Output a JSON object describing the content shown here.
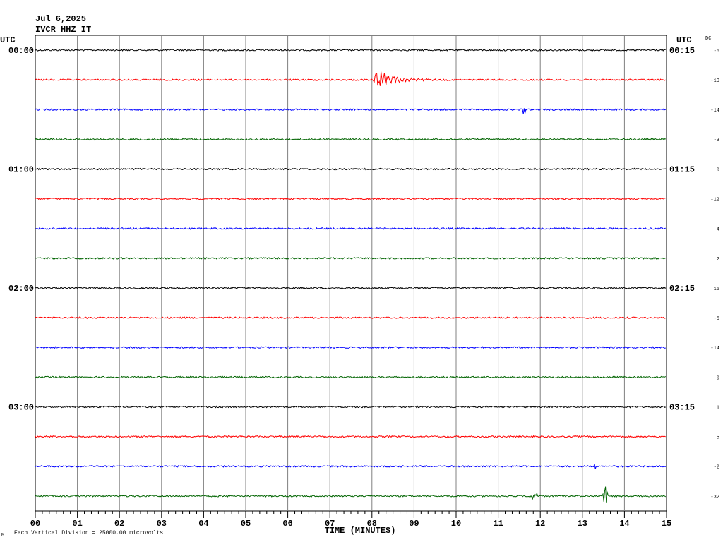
{
  "header": {
    "date": "Jul 6,2025",
    "station": "IVCR HHZ IT"
  },
  "left_axis_title": "UTC",
  "right_axis_title": "UTC",
  "dc_title": "DC",
  "rows": [
    {
      "color": "#000000",
      "left": "00:00",
      "right": "00:15",
      "dc": "-6"
    },
    {
      "color": "#ff0000",
      "dc": "-10"
    },
    {
      "color": "#0000ff",
      "dc": "-14"
    },
    {
      "color": "#006400",
      "dc": "-3"
    },
    {
      "color": "#000000",
      "left": "01:00",
      "right": "01:15",
      "dc": "0"
    },
    {
      "color": "#ff0000",
      "dc": "-12"
    },
    {
      "color": "#0000ff",
      "dc": "-4"
    },
    {
      "color": "#006400",
      "dc": "2"
    },
    {
      "color": "#000000",
      "left": "02:00",
      "right": "02:15",
      "dc": "15"
    },
    {
      "color": "#ff0000",
      "dc": "-5"
    },
    {
      "color": "#0000ff",
      "dc": "-14"
    },
    {
      "color": "#006400",
      "dc": "-0"
    },
    {
      "color": "#000000",
      "left": "03:00",
      "right": "03:15",
      "dc": "1"
    },
    {
      "color": "#ff0000",
      "dc": "5"
    },
    {
      "color": "#0000ff",
      "dc": "-2"
    },
    {
      "color": "#006400",
      "dc": "-32"
    }
  ],
  "x_axis": {
    "ticks": [
      "00",
      "01",
      "02",
      "03",
      "04",
      "05",
      "06",
      "07",
      "08",
      "09",
      "10",
      "11",
      "12",
      "13",
      "14",
      "15"
    ],
    "title": "TIME (MINUTES)"
  },
  "footnote": "Each Vertical Division = 25000.00 microvolts",
  "corner_mark": "M"
}
